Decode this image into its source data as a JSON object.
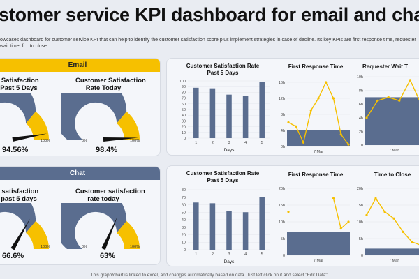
{
  "title": "stomer service KPI dashboard for email and chat",
  "description": "owcases dashboard for customer service KPI that can help to identify the customer satisfaction score plus implement strategies in case of decline. Its key KPIs are first response time, requester wait time, fi... to close.",
  "colors": {
    "navy": "#5a6d8f",
    "gold": "#f6c000",
    "panel": "#f4f6fa",
    "line": "#f6c000"
  },
  "email": {
    "header": "Email",
    "gauge1": {
      "title_line1": "er Satisfaction",
      "title_line2": "e Past 5 Days",
      "value_text": "94.56%",
      "value": 94.56,
      "max_label": "100%"
    },
    "gauge2": {
      "title_line1": "Customer Satisfaction",
      "title_line2": "Rate Today",
      "value_text": "98.4%",
      "value": 98.4,
      "min_label": "0%",
      "max_label": "100%"
    }
  },
  "chat": {
    "header": "Chat",
    "gauge1": {
      "title_line1": "er satisfaction",
      "title_line2": "e past 5 days",
      "value_text": "66.6%",
      "value": 66.6,
      "max_label": "100%"
    },
    "gauge2": {
      "title_line1": "Customer satisfaction",
      "title_line2": "rate today",
      "value_text": "63%",
      "value": 63,
      "min_label": "0%",
      "max_label": "100%"
    }
  },
  "chart_data": [
    {
      "id": "email-bar",
      "type": "bar",
      "title": "Customer Satisfaction Rate Past 5 Days",
      "title_line1": "Customer Satisfaction Rate",
      "title_line2": "Past 5 Days",
      "categories": [
        "1",
        "2",
        "3",
        "4",
        "5"
      ],
      "values": [
        88,
        87,
        76,
        74,
        98
      ],
      "ylim": [
        0,
        100
      ],
      "yticks": [
        "0",
        "10",
        "20",
        "30",
        "40",
        "50",
        "60",
        "70",
        "80",
        "90",
        "100"
      ],
      "xlabel": "Days"
    },
    {
      "id": "email-frt",
      "type": "line",
      "title": "First Response Time",
      "yticks": [
        "0h",
        "4h",
        "8h",
        "12h",
        "16h"
      ],
      "ylim": [
        0,
        16
      ],
      "bar_value": 4,
      "bar_label": "7 Mar",
      "line": [
        6,
        5,
        1,
        9,
        12,
        16,
        12,
        3,
        0.5
      ]
    },
    {
      "id": "email-rwt",
      "type": "line",
      "title": "Requester Wait T",
      "yticks": [
        "0",
        "2h",
        "4h",
        "6h",
        "8h",
        "10h"
      ],
      "ylim": [
        0,
        10
      ],
      "bar_value": 7,
      "bar_label": "7 Mar",
      "line": [
        4,
        6.5,
        7,
        6.5,
        9.5,
        6
      ]
    },
    {
      "id": "chat-bar",
      "type": "bar",
      "title": "Customer Satisfaction Rate Past 5 Days",
      "title_line1": "Customer Satisfaction Rate",
      "title_line2": "Past 5 Days",
      "categories": [
        "1",
        "2",
        "3",
        "4",
        "5"
      ],
      "values": [
        63,
        62,
        52,
        50,
        70
      ],
      "ylim": [
        0,
        80
      ],
      "yticks": [
        "0",
        "10",
        "20",
        "30",
        "40",
        "50",
        "60",
        "70",
        "80"
      ],
      "xlabel": "Days"
    },
    {
      "id": "chat-frt",
      "type": "line",
      "title": "First Response Time",
      "yticks": [
        "0",
        "5h",
        "10h",
        "15h",
        "20h"
      ],
      "ylim": [
        0,
        20
      ],
      "bar_value": 7,
      "bar_label": "7 Mar",
      "line": [
        13,
        null,
        null,
        null,
        null,
        null,
        17,
        8,
        10
      ]
    },
    {
      "id": "chat-ttc",
      "type": "line",
      "title": "Time to Close",
      "yticks": [
        "0",
        "5h",
        "10h",
        "15h",
        "20h"
      ],
      "ylim": [
        0,
        20
      ],
      "bar_value": 2,
      "bar_label": "7 Mar",
      "line": [
        12,
        17,
        13,
        11,
        7,
        4,
        3
      ]
    }
  ],
  "footer": "This graph/chart is linked to excel, and changes automatically based on data. Just left click on it and select \"Edit Data\"."
}
